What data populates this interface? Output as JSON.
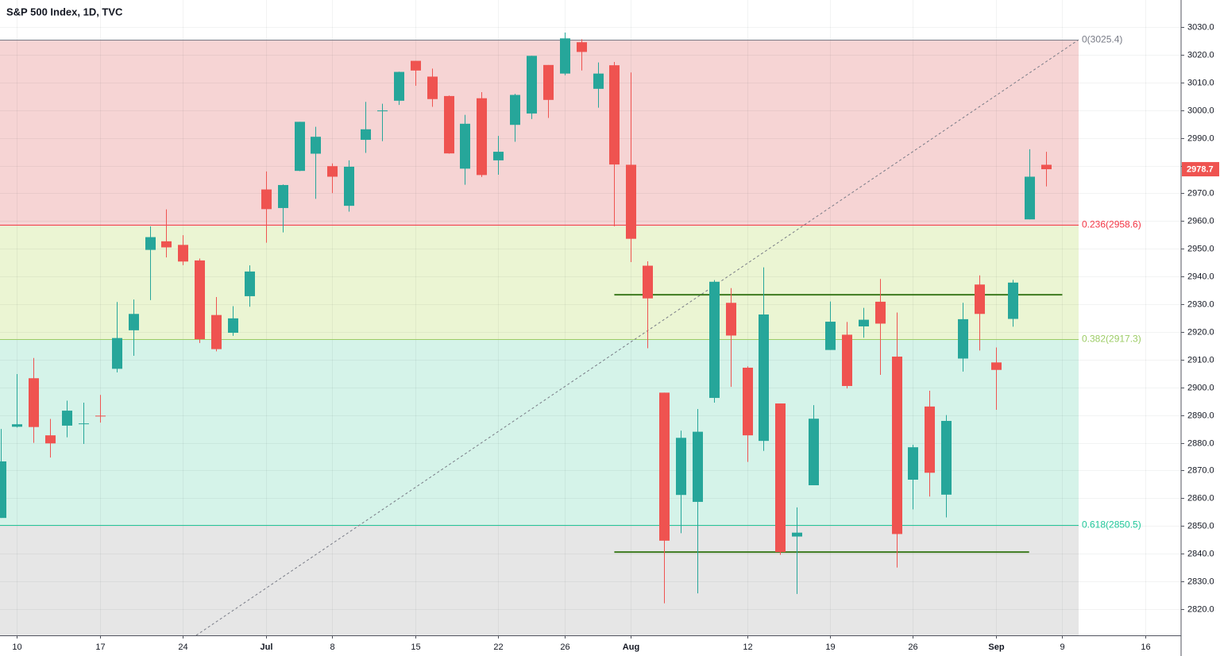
{
  "chart_data": {
    "type": "candlestick",
    "title": "S&P 500 Index, 1D, TVC",
    "categories": [
      "06-07",
      "06-10",
      "06-11",
      "06-12",
      "06-13",
      "06-14",
      "06-17",
      "06-18",
      "06-19",
      "06-20",
      "06-21",
      "06-24",
      "06-25",
      "06-26",
      "06-27",
      "06-28",
      "07-01",
      "07-02",
      "07-03",
      "07-05",
      "07-08",
      "07-09",
      "07-10",
      "07-11",
      "07-12",
      "07-15",
      "07-16",
      "07-17",
      "07-18",
      "07-19",
      "07-22",
      "07-23",
      "07-24",
      "07-25",
      "07-26",
      "07-29",
      "07-30",
      "07-31",
      "08-01",
      "08-02",
      "08-05",
      "08-06",
      "08-07",
      "08-08",
      "08-09",
      "08-12",
      "08-13",
      "08-14",
      "08-15",
      "08-16",
      "08-19",
      "08-20",
      "08-21",
      "08-22",
      "08-23",
      "08-26",
      "08-27",
      "08-28",
      "08-29",
      "08-30",
      "09-03",
      "09-04",
      "09-05",
      "09-06"
    ],
    "open": [
      2852.9,
      2885.8,
      2903.3,
      2882.7,
      2886.2,
      2886.8,
      2889.8,
      2906.7,
      2920.6,
      2949.6,
      2952.7,
      2951.4,
      2945.8,
      2926.1,
      2919.7,
      2932.9,
      2971.4,
      2964.7,
      2978.1,
      2984.3,
      2979.8,
      2965.5,
      2989.3,
      2999.6,
      3003.4,
      3017.8,
      3012.1,
      3005.1,
      2978.9,
      3004.3,
      2981.9,
      2994.7,
      2998.8,
      3016.3,
      3013.2,
      3024.5,
      3007.7,
      3016.2,
      2980.3,
      2943.9,
      2898.1,
      2861.2,
      2858.7,
      2896.2,
      2930.5,
      2907.1,
      2880.7,
      2894.2,
      2846.2,
      2864.7,
      2913.5,
      2919.0,
      2922.0,
      2930.9,
      2911.1,
      2866.7,
      2893.1,
      2861.3,
      2910.4,
      2937.1,
      2909.0,
      2924.7,
      2960.6,
      2980.3
    ],
    "high": [
      2885.0,
      2904.8,
      2910.6,
      2888.6,
      2895.2,
      2894.5,
      2897.3,
      2930.8,
      2931.7,
      2958.1,
      2964.2,
      2954.9,
      2946.5,
      2932.6,
      2929.3,
      2944.0,
      2977.9,
      2973.2,
      2995.8,
      2994.0,
      2980.8,
      2981.9,
      3003.0,
      3002.3,
      3013.9,
      3017.8,
      3015.0,
      3005.3,
      2998.3,
      3006.5,
      2990.7,
      3005.9,
      3019.6,
      3016.3,
      3028.0,
      3025.6,
      3017.2,
      3017.4,
      3013.6,
      2945.5,
      2898.1,
      2884.4,
      2892.2,
      2938.7,
      2935.8,
      2907.6,
      2943.3,
      2894.2,
      2856.7,
      2893.6,
      2931.0,
      2923.6,
      2928.7,
      2939.1,
      2927.0,
      2879.3,
      2898.8,
      2890.0,
      2930.5,
      2940.4,
      2914.4,
      2938.8,
      2985.9,
      2985.0
    ],
    "low": [
      2852.9,
      2885.5,
      2880.0,
      2874.7,
      2882.0,
      2879.6,
      2887.3,
      2905.4,
      2911.4,
      2931.5,
      2946.9,
      2944.1,
      2916.0,
      2913.0,
      2918.6,
      2929.1,
      2952.2,
      2955.9,
      2978.0,
      2968.0,
      2970.1,
      2963.4,
      2984.6,
      2988.8,
      3001.9,
      3008.8,
      3001.2,
      2984.3,
      2973.1,
      2975.9,
      2976.7,
      2988.6,
      2996.8,
      2997.2,
      3012.6,
      3014.3,
      3000.9,
      2958.1,
      2945.2,
      2914.1,
      2822.1,
      2847.4,
      2825.7,
      2894.5,
      2900.2,
      2873.1,
      2877.1,
      2839.6,
      2825.5,
      2864.7,
      2913.5,
      2899.6,
      2917.9,
      2904.5,
      2835.0,
      2856.0,
      2860.6,
      2853.1,
      2905.7,
      2913.3,
      2891.9,
      2921.9,
      2960.6,
      2972.5
    ],
    "close": [
      2873.3,
      2886.7,
      2885.7,
      2879.8,
      2891.6,
      2887.0,
      2889.7,
      2917.8,
      2926.5,
      2954.2,
      2950.5,
      2945.4,
      2917.4,
      2913.8,
      2924.9,
      2941.8,
      2964.3,
      2973.0,
      2995.8,
      2990.4,
      2976.0,
      2979.6,
      2993.1,
      2999.9,
      3013.8,
      3014.3,
      3004.0,
      2984.4,
      2995.1,
      2976.6,
      2985.0,
      3005.5,
      3019.6,
      3003.7,
      3025.9,
      3021.0,
      3013.2,
      2980.4,
      2953.6,
      2932.1,
      2844.7,
      2881.8,
      2884.0,
      2938.1,
      2918.7,
      2882.7,
      2926.3,
      2840.6,
      2847.6,
      2888.7,
      2923.7,
      2900.5,
      2924.4,
      2923.0,
      2847.1,
      2878.4,
      2869.2,
      2887.9,
      2924.6,
      2926.5,
      2906.3,
      2937.8,
      2976.0,
      2978.7
    ],
    "up_color": "#26a69a",
    "down_color": "#ef5350",
    "ylim": [
      2810.55,
      3039.74
    ],
    "yticks": [
      {
        "value": 2820,
        "label": "2820.0"
      },
      {
        "value": 2830,
        "label": "2830.0"
      },
      {
        "value": 2840,
        "label": "2840.0"
      },
      {
        "value": 2850,
        "label": "2850.0"
      },
      {
        "value": 2860,
        "label": "2860.0"
      },
      {
        "value": 2870,
        "label": "2870.0"
      },
      {
        "value": 2880,
        "label": "2880.0"
      },
      {
        "value": 2890,
        "label": "2890.0"
      },
      {
        "value": 2900,
        "label": "2900.0"
      },
      {
        "value": 2910,
        "label": "2910.0"
      },
      {
        "value": 2920,
        "label": "2920.0"
      },
      {
        "value": 2930,
        "label": "2930.0"
      },
      {
        "value": 2940,
        "label": "2940.0"
      },
      {
        "value": 2950,
        "label": "2950.0"
      },
      {
        "value": 2960,
        "label": "2960.0"
      },
      {
        "value": 2970,
        "label": "2970.0"
      },
      {
        "value": 2980,
        "label": "2980.0"
      },
      {
        "value": 2990,
        "label": "2990.0"
      },
      {
        "value": 3000,
        "label": "3000.0"
      },
      {
        "value": 3010,
        "label": "3010.0"
      },
      {
        "value": 3020,
        "label": "3020.0"
      },
      {
        "value": 3030,
        "label": "3030.0"
      }
    ],
    "xticks": [
      {
        "value": "06-10",
        "label": "10"
      },
      {
        "value": "06-17",
        "label": "17"
      },
      {
        "value": "06-24",
        "label": "24"
      },
      {
        "value": "07-01",
        "label": "Jul"
      },
      {
        "value": "07-08",
        "label": "8"
      },
      {
        "value": "07-15",
        "label": "15"
      },
      {
        "value": "07-22",
        "label": "22"
      },
      {
        "value": "07-26",
        "label": "26"
      },
      {
        "value": "08-01",
        "label": "Aug"
      },
      {
        "value": "08-12",
        "label": "12"
      },
      {
        "value": "08-19",
        "label": "19"
      },
      {
        "value": "08-26",
        "label": "26"
      },
      {
        "value": "09-03",
        "label": "Sep"
      },
      {
        "value": "09-09",
        "label": "9"
      },
      {
        "value": "09-16",
        "label": "16"
      }
    ],
    "grid": true,
    "fib_levels": [
      {
        "value": 3025.4,
        "label": "0(3025.4)",
        "color": "#787b86",
        "fill": "#f6d4d4"
      },
      {
        "value": 2958.6,
        "label": "0.236(2958.6)",
        "color": "#f23645",
        "fill": "#ebf5d3"
      },
      {
        "value": 2917.3,
        "label": "0.382(2917.3)",
        "color": "#9ccc65",
        "fill": "#d5f3e9"
      },
      {
        "value": 2850.5,
        "label": "0.618(2850.5)",
        "color": "#22c79a",
        "fill": "#e6e6e6"
      }
    ],
    "trend_lines": [
      {
        "value": 2933.4,
        "from": "07-31",
        "to": "09-09",
        "color": "#3d7a1f"
      },
      {
        "value": 2840.6,
        "from": "07-31",
        "to": "09-05",
        "color": "#3d7a1f"
      }
    ],
    "last_price": 2978.7
  }
}
